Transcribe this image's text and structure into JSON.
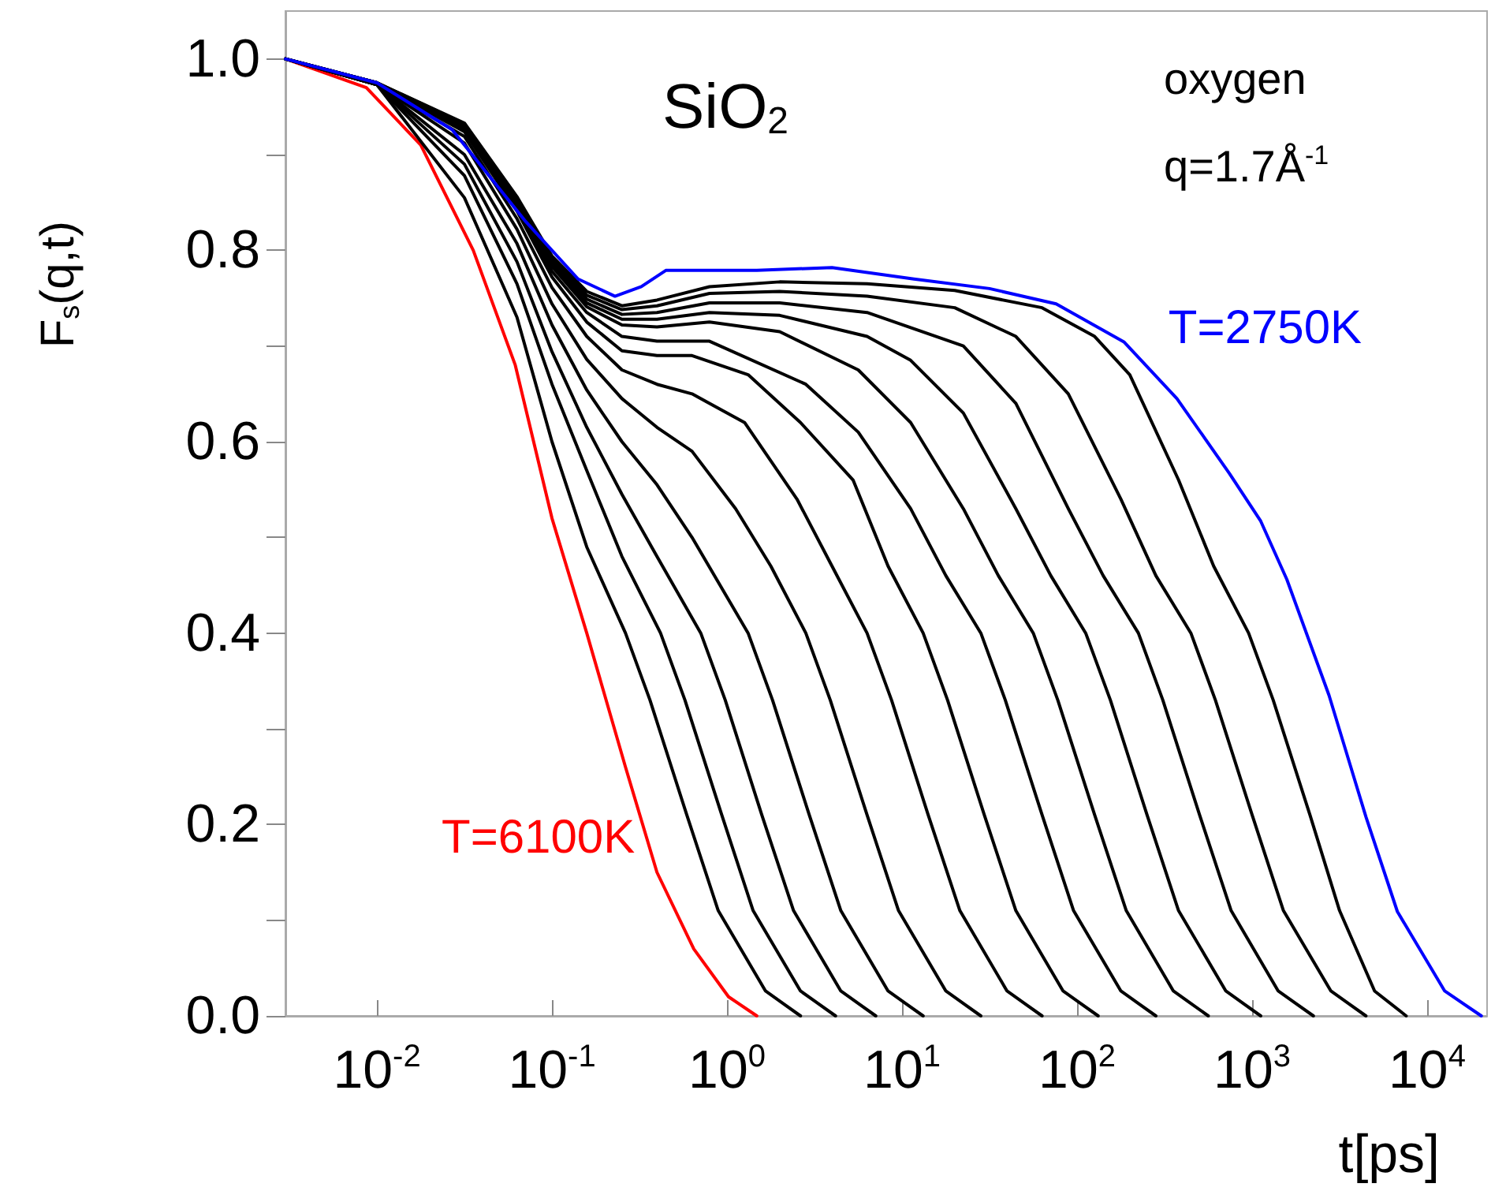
{
  "chart_data": {
    "type": "line",
    "ylabel": "F$_{s}$(q,t)",
    "xlabel": "t[ps]",
    "annotations": [
      "SiO$_{2}$",
      "oxygen",
      "q=1.7Å$^{-1}$"
    ],
    "log": "x",
    "grid": false,
    "legend": false,
    "marker": "none",
    "line_style": "solid",
    "xlim": [
      0.003,
      22000
    ],
    "xticks": [
      {
        "value": 0.01,
        "label": "10$^{-2}$"
      },
      {
        "value": 0.1,
        "label": "10$^{-1}$"
      },
      {
        "value": 1,
        "label": "10$^{0}$"
      },
      {
        "value": 10,
        "label": "10$^{1}$"
      },
      {
        "value": 100,
        "label": "10$^{2}$"
      },
      {
        "value": 1000,
        "label": "10$^{3}$"
      },
      {
        "value": 10000,
        "label": "10$^{4}$"
      }
    ],
    "ylim": [
      0,
      1.05
    ],
    "yticks": [
      {
        "value": 0,
        "label": "0.0"
      },
      {
        "value": 0.1,
        "label": null
      },
      0.2,
      {
        "value": 0.3,
        "label": null
      },
      0.4,
      {
        "value": 0.5,
        "label": null
      },
      0.6,
      {
        "value": 0.7,
        "label": null
      },
      0.8,
      {
        "value": 0.9,
        "label": null
      },
      {
        "value": 1,
        "label": "1.0"
      }
    ],
    "series": [
      {
        "name": "T=6100K",
        "color": "#ff0000",
        "x": [
          0.003,
          0.0087,
          0.0178,
          0.0355,
          0.0617,
          0.1,
          0.158,
          0.263,
          0.398,
          0.646,
          1.02,
          1.48
        ],
        "values": [
          1,
          0.97,
          0.91,
          0.8,
          0.68,
          0.52,
          0.4,
          0.26,
          0.15,
          0.07,
          0.02,
          0
        ]
      },
      {
        "color": "#000000",
        "x": [
          0.003,
          0.01,
          0.0316,
          0.0631,
          0.1,
          0.158,
          0.263,
          0.363,
          0.589,
          0.891,
          1.66,
          2.63
        ],
        "values": [
          1,
          0.973,
          0.855,
          0.73,
          0.6,
          0.49,
          0.4,
          0.33,
          0.21,
          0.11,
          0.026,
          0
        ]
      },
      {
        "color": "#000000",
        "x": [
          0.003,
          0.01,
          0.0316,
          0.0631,
          0.1,
          0.158,
          0.251,
          0.417,
          0.575,
          0.933,
          1.41,
          2.63,
          4.17
        ],
        "values": [
          1,
          0.973,
          0.878,
          0.765,
          0.66,
          0.57,
          0.48,
          0.4,
          0.33,
          0.21,
          0.11,
          0.026,
          0
        ]
      },
      {
        "color": "#000000",
        "x": [
          0.003,
          0.01,
          0.0316,
          0.0631,
          0.1,
          0.158,
          0.251,
          0.398,
          0.708,
          0.977,
          1.58,
          2.4,
          4.47,
          7.08
        ],
        "values": [
          1,
          0.973,
          0.89,
          0.788,
          0.694,
          0.615,
          0.545,
          0.48,
          0.4,
          0.33,
          0.21,
          0.11,
          0.026,
          0
        ]
      },
      {
        "color": "#000000",
        "x": [
          0.003,
          0.01,
          0.0316,
          0.0631,
          0.1,
          0.158,
          0.251,
          0.398,
          0.631,
          1.32,
          1.82,
          2.95,
          4.47,
          8.32,
          13.2
        ],
        "values": [
          1,
          0.973,
          0.9,
          0.807,
          0.722,
          0.654,
          0.6,
          0.555,
          0.5,
          0.4,
          0.33,
          0.21,
          0.11,
          0.026,
          0
        ]
      },
      {
        "color": "#000000",
        "x": [
          0.003,
          0.01,
          0.0316,
          0.0631,
          0.1,
          0.158,
          0.251,
          0.398,
          0.631,
          1.12,
          1.78,
          2.82,
          3.89,
          6.31,
          9.55,
          17.8,
          28.2
        ],
        "values": [
          1,
          0.973,
          0.912,
          0.822,
          0.744,
          0.686,
          0.645,
          0.615,
          0.59,
          0.53,
          0.47,
          0.4,
          0.33,
          0.21,
          0.11,
          0.026,
          0
        ]
      },
      {
        "color": "#000000",
        "x": [
          0.003,
          0.01,
          0.0316,
          0.0631,
          0.1,
          0.158,
          0.251,
          0.398,
          0.631,
          1.26,
          2.51,
          3.98,
          6.31,
          8.71,
          14.1,
          21.4,
          39.8,
          63.1
        ],
        "values": [
          1,
          0.973,
          0.919,
          0.833,
          0.761,
          0.71,
          0.675,
          0.66,
          0.65,
          0.62,
          0.54,
          0.47,
          0.4,
          0.33,
          0.21,
          0.11,
          0.026,
          0
        ]
      },
      {
        "color": "#000000",
        "x": [
          0.003,
          0.01,
          0.0316,
          0.0631,
          0.1,
          0.158,
          0.251,
          0.398,
          0.631,
          1.32,
          2.63,
          5.25,
          8.32,
          13.2,
          18.2,
          29.5,
          44.7,
          83.2,
          132
        ],
        "values": [
          1,
          0.974,
          0.924,
          0.841,
          0.772,
          0.725,
          0.695,
          0.69,
          0.69,
          0.67,
          0.62,
          0.56,
          0.47,
          0.4,
          0.33,
          0.21,
          0.11,
          0.026,
          0
        ]
      },
      {
        "color": "#000000",
        "x": [
          0.003,
          0.01,
          0.0316,
          0.0631,
          0.1,
          0.158,
          0.251,
          0.398,
          0.794,
          2.82,
          5.62,
          11.2,
          17.8,
          28.2,
          38.9,
          63.1,
          95.5,
          178,
          282
        ],
        "values": [
          1,
          0.975,
          0.926,
          0.845,
          0.778,
          0.735,
          0.71,
          0.705,
          0.705,
          0.66,
          0.61,
          0.53,
          0.46,
          0.4,
          0.33,
          0.21,
          0.11,
          0.026,
          0
        ]
      },
      {
        "color": "#000000",
        "x": [
          0.003,
          0.01,
          0.0316,
          0.0631,
          0.1,
          0.158,
          0.251,
          0.398,
          0.794,
          2.0,
          5.62,
          11.2,
          22.4,
          35.5,
          56.2,
          77.6,
          126,
          191,
          355,
          562
        ],
        "values": [
          1,
          0.975,
          0.928,
          0.849,
          0.783,
          0.741,
          0.722,
          0.72,
          0.725,
          0.715,
          0.675,
          0.62,
          0.53,
          0.46,
          0.4,
          0.33,
          0.21,
          0.11,
          0.026,
          0
        ]
      },
      {
        "color": "#000000",
        "x": [
          0.003,
          0.01,
          0.0316,
          0.0631,
          0.1,
          0.158,
          0.251,
          0.398,
          0.794,
          2.0,
          6.31,
          11.2,
          22.4,
          44.7,
          70.8,
          112,
          155,
          251,
          380,
          708,
          1120
        ],
        "values": [
          1,
          0.975,
          0.929,
          0.85,
          0.786,
          0.745,
          0.728,
          0.728,
          0.735,
          0.732,
          0.71,
          0.685,
          0.63,
          0.53,
          0.46,
          0.4,
          0.33,
          0.21,
          0.11,
          0.026,
          0
        ]
      },
      {
        "color": "#000000",
        "x": [
          0.003,
          0.01,
          0.0316,
          0.0631,
          0.1,
          0.158,
          0.251,
          0.398,
          0.794,
          2.0,
          6.31,
          22.4,
          44.7,
          89.1,
          141,
          224,
          309,
          501,
          759,
          1410,
          2240
        ],
        "values": [
          1,
          0.975,
          0.93,
          0.852,
          0.789,
          0.749,
          0.733,
          0.735,
          0.745,
          0.745,
          0.735,
          0.7,
          0.64,
          0.53,
          0.46,
          0.4,
          0.33,
          0.21,
          0.11,
          0.026,
          0
        ]
      },
      {
        "color": "#000000",
        "x": [
          0.003,
          0.01,
          0.0316,
          0.0631,
          0.1,
          0.158,
          0.251,
          0.398,
          0.794,
          2.0,
          6.31,
          20.0,
          44.7,
          89.1,
          178,
          282,
          447,
          617,
          1000,
          1510,
          2820,
          4470
        ],
        "values": [
          1,
          0.975,
          0.932,
          0.854,
          0.792,
          0.753,
          0.738,
          0.742,
          0.755,
          0.757,
          0.752,
          0.74,
          0.71,
          0.65,
          0.54,
          0.46,
          0.4,
          0.33,
          0.21,
          0.11,
          0.026,
          0
        ]
      },
      {
        "color": "#000000",
        "x": [
          0.003,
          0.01,
          0.0316,
          0.0631,
          0.1,
          0.158,
          0.251,
          0.398,
          0.794,
          2.0,
          6.31,
          20.0,
          63.1,
          126,
          200,
          380,
          603,
          955,
          1320,
          2140,
          3160,
          5010,
          7590
        ],
        "values": [
          1,
          0.975,
          0.933,
          0.856,
          0.794,
          0.757,
          0.742,
          0.748,
          0.762,
          0.767,
          0.765,
          0.758,
          0.74,
          0.71,
          0.67,
          0.56,
          0.47,
          0.4,
          0.33,
          0.21,
          0.11,
          0.026,
          0
        ]
      },
      {
        "name": "T=2750K",
        "color": "#0000ff",
        "x": [
          0.003,
          0.01,
          0.0269,
          0.0708,
          0.141,
          0.229,
          0.324,
          0.447,
          1.48,
          3.98,
          11.7,
          31.6,
          75.9,
          186,
          372,
          741,
          1120,
          1580,
          2750,
          4470,
          6760,
          12600,
          20400
        ],
        "values": [
          1,
          0.975,
          0.926,
          0.83,
          0.77,
          0.752,
          0.762,
          0.779,
          0.779,
          0.782,
          0.77,
          0.76,
          0.744,
          0.704,
          0.645,
          0.567,
          0.517,
          0.456,
          0.335,
          0.208,
          0.109,
          0.026,
          0
        ]
      }
    ]
  }
}
